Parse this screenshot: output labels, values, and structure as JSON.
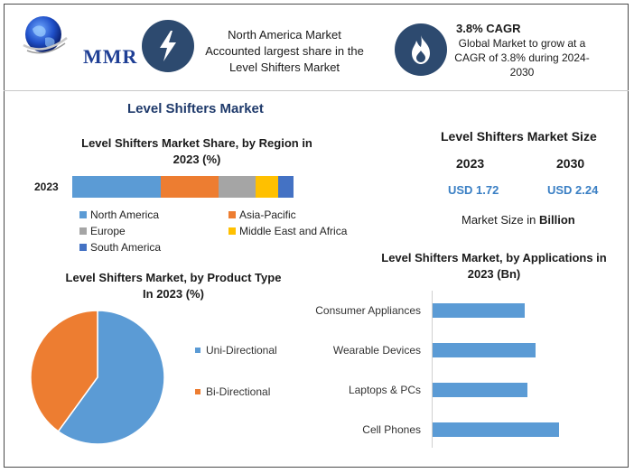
{
  "header": {
    "logo_text": "MMR",
    "highlight1": {
      "icon": "lightning-bolt-icon",
      "lines": [
        "North America Market",
        "Accounted largest share in the",
        "Level Shifters Market"
      ]
    },
    "highlight2": {
      "icon": "flame-icon",
      "title": "3.8% CAGR",
      "lines": [
        "Global Market to grow at a",
        "CAGR of 3.8% during 2024-",
        "2030"
      ]
    }
  },
  "section_title": "Level Shifters Market",
  "market_size": {
    "title": "Level Shifters Market Size",
    "year1": "2023",
    "year2": "2030",
    "value1": "USD 1.72",
    "value2": "USD 2.24",
    "note_prefix": "Market Size in ",
    "note_unit": "Billion"
  },
  "colors": {
    "north_america": "#5b9bd5",
    "asia_pacific": "#ed7d31",
    "europe": "#a5a5a5",
    "mea": "#ffc000",
    "south_america": "#4472c4",
    "badge": "#2d4a6f",
    "title_blue": "#1f3a6b"
  },
  "chart_data": [
    {
      "type": "bar",
      "orientation": "horizontal-stacked",
      "title_lines": [
        "Level Shifters Market Share, by Region in",
        "2023 (%)"
      ],
      "categories": [
        "2023"
      ],
      "series": [
        {
          "name": "North America",
          "values": [
            40
          ]
        },
        {
          "name": "Asia-Pacific",
          "values": [
            26
          ]
        },
        {
          "name": "Europe",
          "values": [
            17
          ]
        },
        {
          "name": "Middle East and Africa",
          "values": [
            10
          ]
        },
        {
          "name": "South America",
          "values": [
            7
          ]
        }
      ],
      "legend": "bottom"
    },
    {
      "type": "pie",
      "title_lines": [
        "Level Shifters Market, by Product Type",
        "In 2023 (%)"
      ],
      "labels": [
        "Uni-Directional",
        "Bi-Directional"
      ],
      "values": [
        60,
        40
      ],
      "legend": "right"
    },
    {
      "type": "bar",
      "orientation": "horizontal",
      "title_lines": [
        "Level Shifters Market, by Applications in",
        "2023 (Bn)"
      ],
      "categories": [
        "Consumer Appliances",
        "Wearable Devices",
        "Laptops & PCs",
        "Cell Phones"
      ],
      "values": [
        0.35,
        0.39,
        0.36,
        0.48
      ]
    }
  ]
}
